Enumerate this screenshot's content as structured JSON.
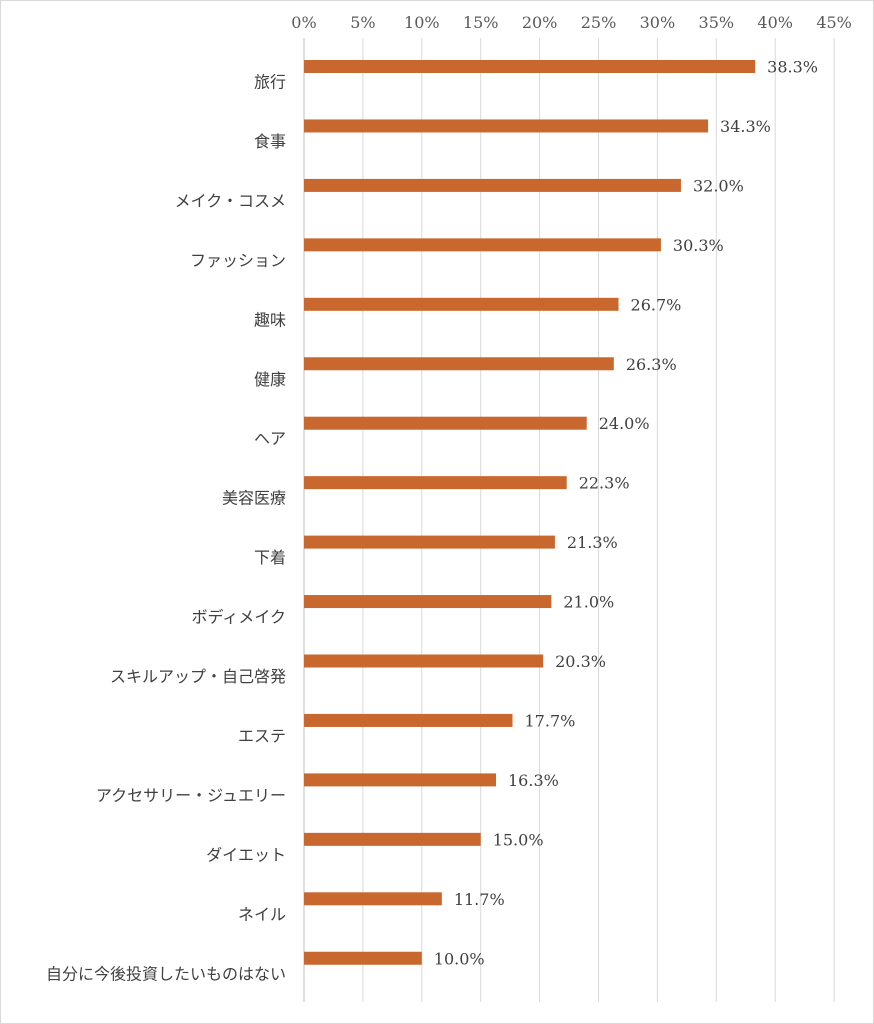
{
  "chart_data": {
    "type": "bar",
    "orientation": "horizontal",
    "categories": [
      "旅行",
      "食事",
      "メイク・コスメ",
      "ファッション",
      "趣味",
      "健康",
      "ヘア",
      "美容医療",
      "下着",
      "ボディメイク",
      "スキルアップ・自己啓発",
      "エステ",
      "アクセサリー・ジュエリー",
      "ダイエット",
      "ネイル",
      "自分に今後投資したいものはない"
    ],
    "values": [
      38.3,
      34.3,
      32.0,
      30.3,
      26.7,
      26.3,
      24.0,
      22.3,
      21.3,
      21.0,
      20.3,
      17.7,
      16.3,
      15.0,
      11.7,
      10.0
    ],
    "data_labels": [
      "38.3%",
      "34.3%",
      "32.0%",
      "30.3%",
      "26.7%",
      "26.3%",
      "24.0%",
      "22.3%",
      "21.3%",
      "21.0%",
      "20.3%",
      "17.7%",
      "16.3%",
      "15.0%",
      "11.7%",
      "10.0%"
    ],
    "xlim": [
      0,
      45
    ],
    "x_ticks": [
      0,
      5,
      10,
      15,
      20,
      25,
      30,
      35,
      40,
      45
    ],
    "x_tick_labels": [
      "0%",
      "5%",
      "10%",
      "15%",
      "20%",
      "25%",
      "30%",
      "35%",
      "40%",
      "45%"
    ],
    "x_axis_position": "top",
    "title": "",
    "xlabel": "",
    "ylabel": "",
    "grid": true,
    "legend": "none",
    "bar_color": "#C8682E"
  }
}
